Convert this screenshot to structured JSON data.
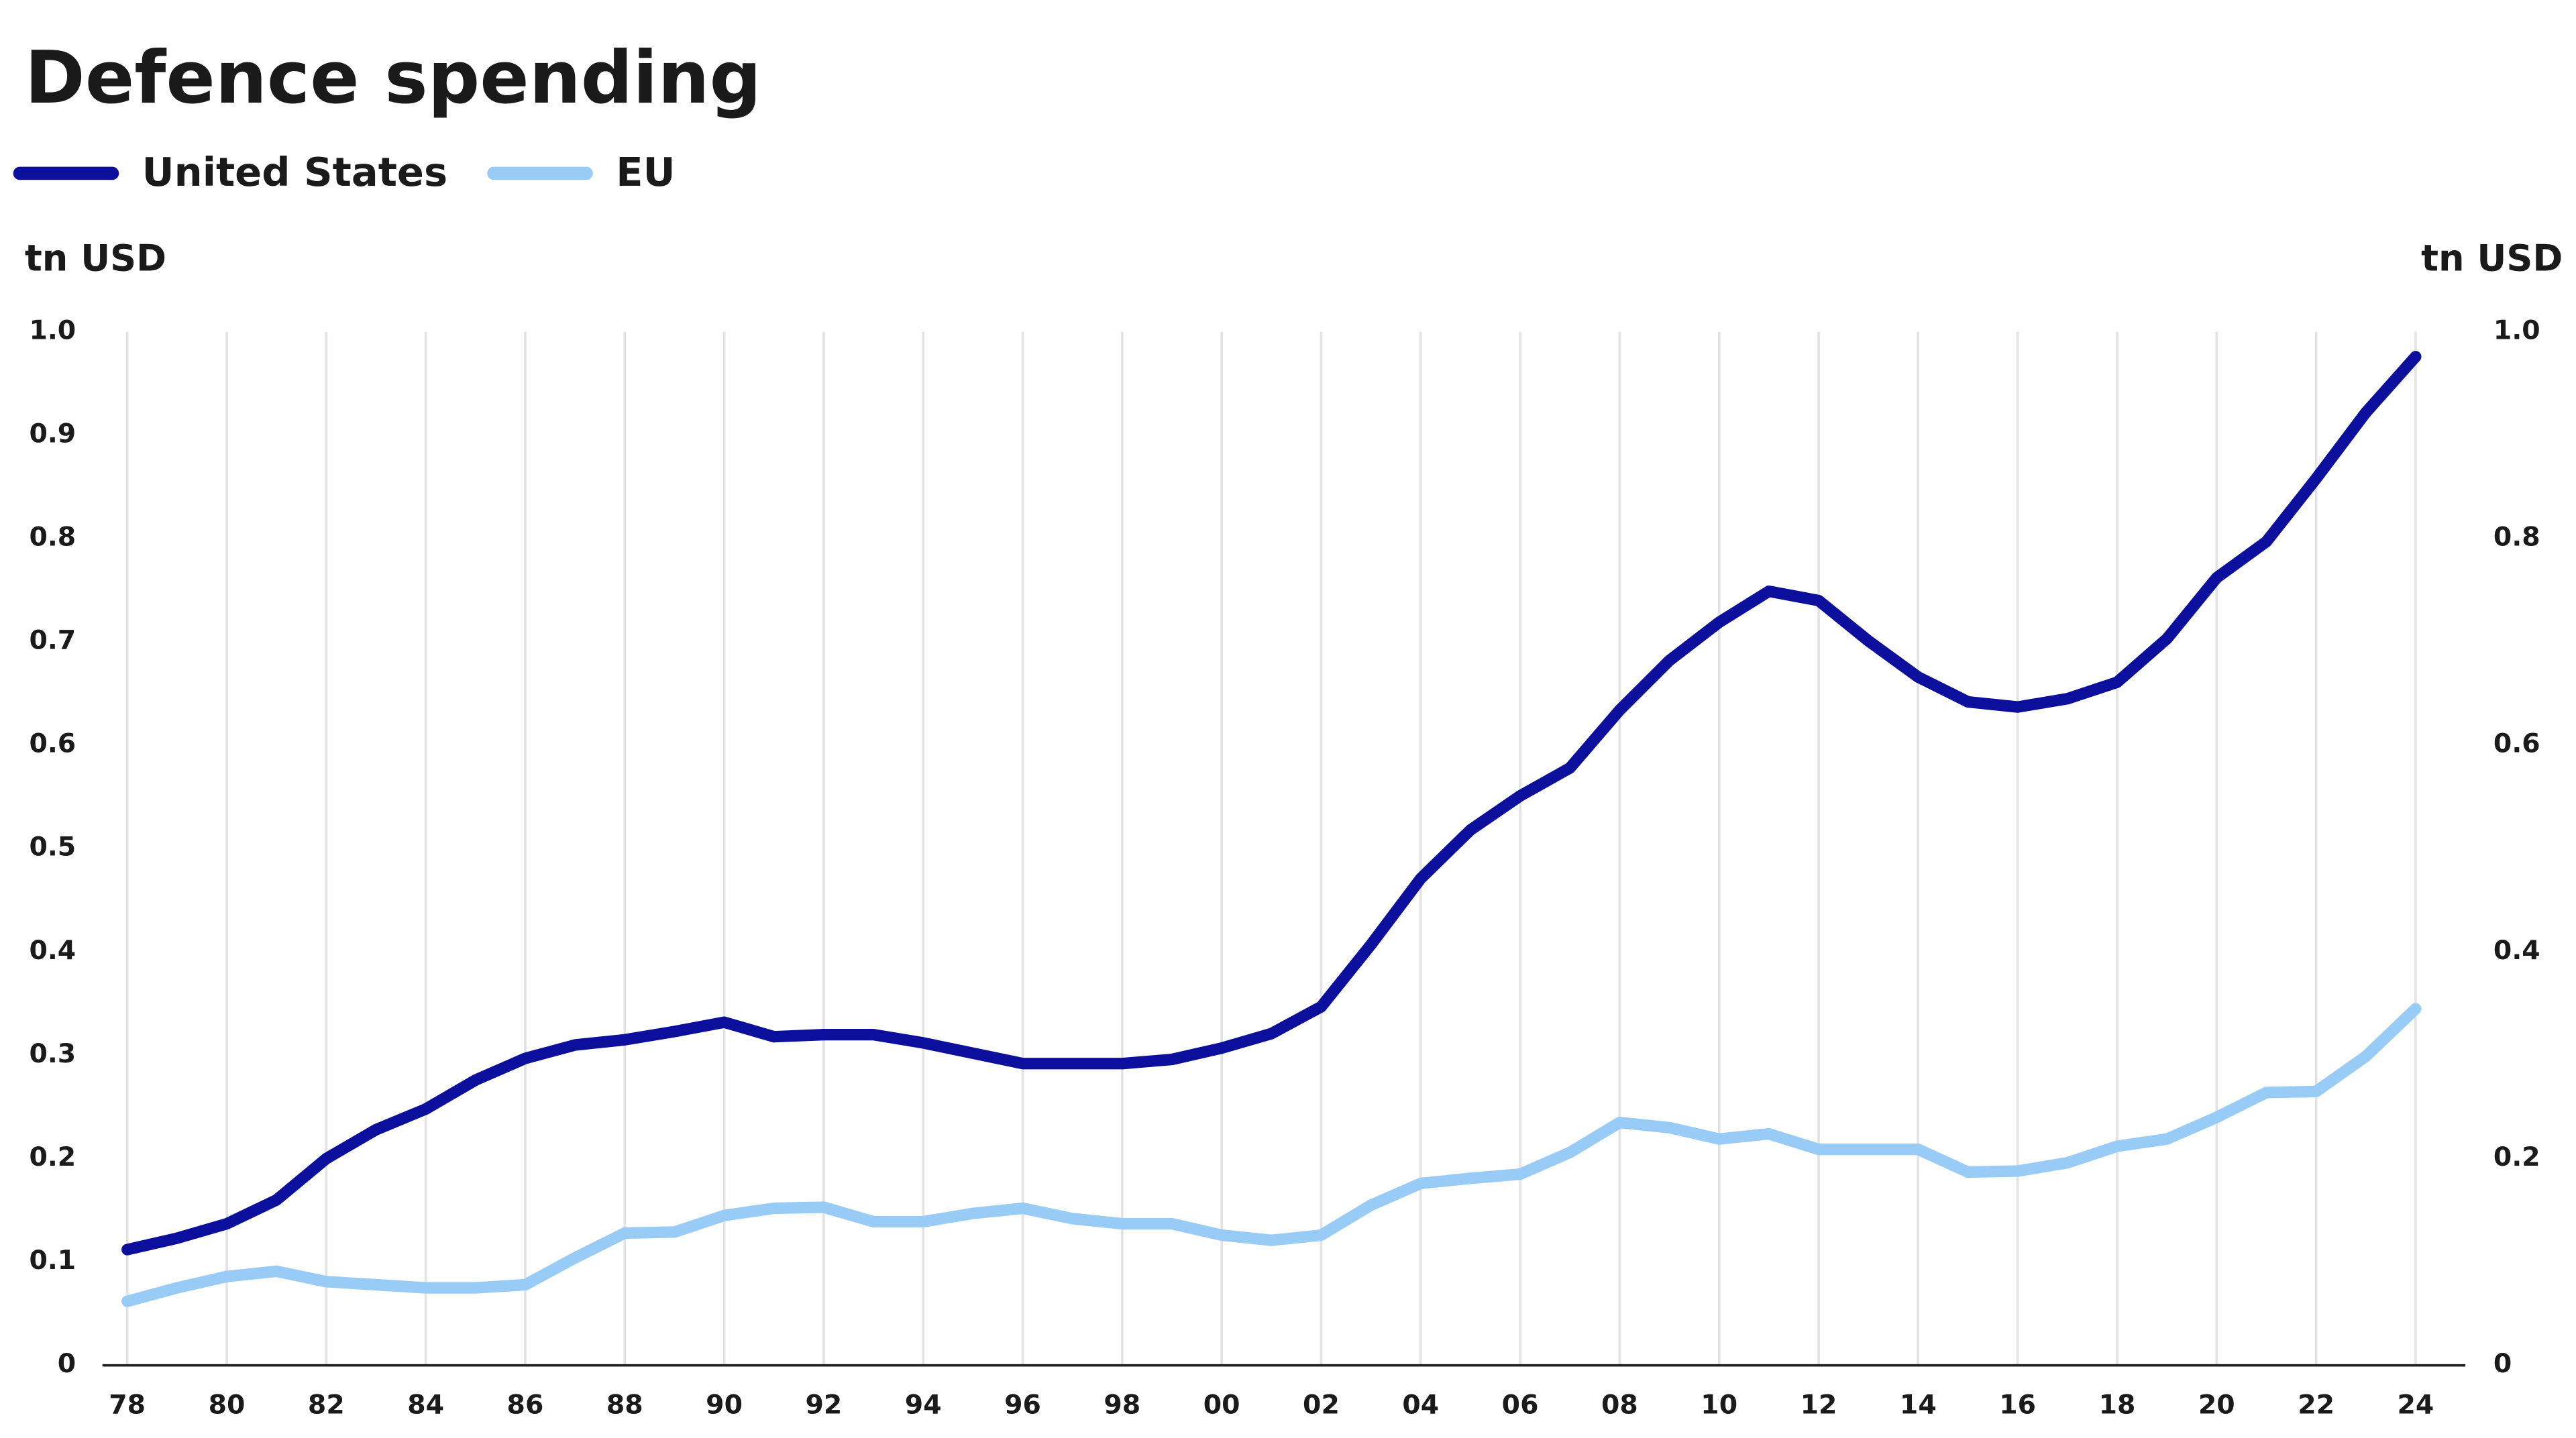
{
  "chart_data": {
    "type": "line",
    "title": "Defence spending",
    "y_label": "tn USD",
    "y2_label": "tn USD",
    "x": [
      1978,
      1979,
      1980,
      1981,
      1982,
      1983,
      1984,
      1985,
      1986,
      1987,
      1988,
      1989,
      1990,
      1991,
      1992,
      1993,
      1994,
      1995,
      1996,
      1997,
      1998,
      1999,
      2000,
      2001,
      2002,
      2003,
      2004,
      2005,
      2006,
      2007,
      2008,
      2009,
      2010,
      2011,
      2012,
      2013,
      2014,
      2015,
      2016,
      2017,
      2018,
      2019,
      2020,
      2021,
      2022,
      2023,
      2024
    ],
    "series": [
      {
        "name": "United States",
        "color": "#0b0f9c",
        "values": [
          0.112,
          0.123,
          0.137,
          0.16,
          0.2,
          0.228,
          0.248,
          0.276,
          0.297,
          0.31,
          0.315,
          0.323,
          0.332,
          0.318,
          0.32,
          0.32,
          0.312,
          0.302,
          0.292,
          0.292,
          0.292,
          0.296,
          0.307,
          0.321,
          0.347,
          0.407,
          0.471,
          0.518,
          0.551,
          0.578,
          0.634,
          0.682,
          0.719,
          0.749,
          0.74,
          0.701,
          0.666,
          0.642,
          0.637,
          0.645,
          0.661,
          0.703,
          0.762,
          0.797,
          0.858,
          0.922,
          0.976
        ]
      },
      {
        "name": "EU",
        "color": "#99cbf7",
        "values": [
          0.062,
          0.075,
          0.086,
          0.091,
          0.081,
          0.078,
          0.075,
          0.075,
          0.078,
          0.104,
          0.128,
          0.129,
          0.145,
          0.152,
          0.153,
          0.139,
          0.139,
          0.147,
          0.152,
          0.142,
          0.137,
          0.137,
          0.126,
          0.121,
          0.126,
          0.155,
          0.176,
          0.181,
          0.185,
          0.206,
          0.235,
          0.23,
          0.219,
          0.224,
          0.209,
          0.209,
          0.209,
          0.187,
          0.188,
          0.196,
          0.212,
          0.219,
          0.24,
          0.264,
          0.265,
          0.299,
          0.345
        ]
      }
    ],
    "xlim": [
      1977.5,
      2025
    ],
    "xticks": [
      {
        "value": 1978,
        "label": "78"
      },
      {
        "value": 1980,
        "label": "80"
      },
      {
        "value": 1982,
        "label": "82"
      },
      {
        "value": 1984,
        "label": "84"
      },
      {
        "value": 1986,
        "label": "86"
      },
      {
        "value": 1988,
        "label": "88"
      },
      {
        "value": 1990,
        "label": "90"
      },
      {
        "value": 1992,
        "label": "92"
      },
      {
        "value": 1994,
        "label": "94"
      },
      {
        "value": 1996,
        "label": "96"
      },
      {
        "value": 1998,
        "label": "98"
      },
      {
        "value": 2000,
        "label": "00"
      },
      {
        "value": 2002,
        "label": "02"
      },
      {
        "value": 2004,
        "label": "04"
      },
      {
        "value": 2006,
        "label": "06"
      },
      {
        "value": 2008,
        "label": "08"
      },
      {
        "value": 2010,
        "label": "10"
      },
      {
        "value": 2012,
        "label": "12"
      },
      {
        "value": 2014,
        "label": "14"
      },
      {
        "value": 2016,
        "label": "16"
      },
      {
        "value": 2018,
        "label": "18"
      },
      {
        "value": 2020,
        "label": "20"
      },
      {
        "value": 2022,
        "label": "22"
      },
      {
        "value": 2024,
        "label": "24"
      }
    ],
    "ylim": [
      0,
      1
    ],
    "yticks": [
      0,
      0.1,
      0.2,
      0.3,
      0.4,
      0.5,
      0.6,
      0.7,
      0.8,
      0.9,
      {
        "value": 1,
        "label": "1.0"
      }
    ],
    "y2lim": [
      0,
      1
    ],
    "y2ticks": [
      0,
      0.2,
      0.4,
      0.6,
      0.8,
      {
        "value": 1,
        "label": "1.0"
      }
    ],
    "grid": true
  }
}
